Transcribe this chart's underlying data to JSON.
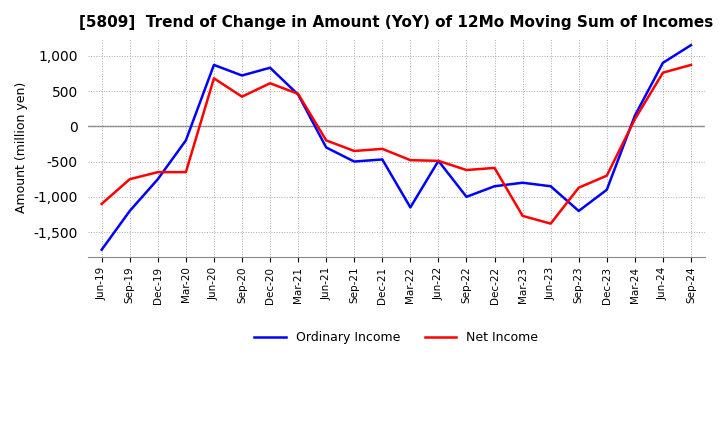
{
  "title": "[5809]  Trend of Change in Amount (YoY) of 12Mo Moving Sum of Incomes",
  "ylabel": "Amount (million yen)",
  "legend_labels": [
    "Ordinary Income",
    "Net Income"
  ],
  "line_colors": [
    "blue",
    "red"
  ],
  "x_labels": [
    "Jun-19",
    "Sep-19",
    "Dec-19",
    "Mar-20",
    "Jun-20",
    "Sep-20",
    "Dec-20",
    "Mar-21",
    "Jun-21",
    "Sep-21",
    "Dec-21",
    "Mar-22",
    "Jun-22",
    "Sep-22",
    "Dec-22",
    "Mar-23",
    "Jun-23",
    "Sep-23",
    "Dec-23",
    "Mar-24",
    "Jun-24",
    "Sep-24"
  ],
  "ordinary_income": [
    -1750,
    -1200,
    -750,
    -200,
    870,
    720,
    830,
    450,
    -300,
    -500,
    -470,
    -1150,
    -490,
    -1000,
    -850,
    -800,
    -850,
    -1200,
    -900,
    150,
    900,
    1150
  ],
  "net_income": [
    -1100,
    -750,
    -650,
    -650,
    680,
    420,
    610,
    460,
    -200,
    -350,
    -320,
    -480,
    -490,
    -620,
    -590,
    -1270,
    -1380,
    -870,
    -700,
    100,
    760,
    870
  ],
  "ylim": [
    -1850,
    1250
  ],
  "yticks": [
    -1500,
    -1000,
    -500,
    0,
    500,
    1000
  ],
  "background_color": "#ffffff",
  "grid_color": "#aaaaaa"
}
